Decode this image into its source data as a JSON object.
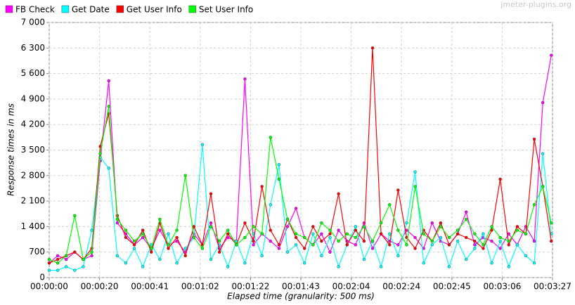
{
  "chart_data": {
    "type": "line",
    "watermark": "jmeter-plugins.org",
    "x_label": "Elapsed time (granularity: 500 ms)",
    "y_label": "Response times in ms",
    "grid": true,
    "legend": "top-left",
    "xlim": [
      0,
      207
    ],
    "xticks": [
      {
        "value": 0,
        "label": "00:00:00"
      },
      {
        "value": 20.7,
        "label": "00:00:20"
      },
      {
        "value": 41.4,
        "label": "00:00:41"
      },
      {
        "value": 62.1,
        "label": "00:01:02"
      },
      {
        "value": 82.8,
        "label": "00:01:22"
      },
      {
        "value": 103.5,
        "label": "00:01:43"
      },
      {
        "value": 124.2,
        "label": "00:02:04"
      },
      {
        "value": 144.9,
        "label": "00:02:24"
      },
      {
        "value": 165.6,
        "label": "00:02:45"
      },
      {
        "value": 186.3,
        "label": "00:03:06"
      },
      {
        "value": 207,
        "label": "00:03:27"
      }
    ],
    "ylim": [
      0,
      7000
    ],
    "yticks": [
      0,
      700,
      {
        "value": 1400,
        "label": "1 400"
      },
      {
        "value": 2100,
        "label": "2 100"
      },
      {
        "value": 2800,
        "label": "2 800"
      },
      {
        "value": 3500,
        "label": "3 500"
      },
      {
        "value": 4200,
        "label": "4 200"
      },
      {
        "value": 4900,
        "label": "4 900"
      },
      {
        "value": 5600,
        "label": "5 600"
      },
      {
        "value": 6300,
        "label": "6 300"
      },
      {
        "value": 7000,
        "label": "7 000"
      }
    ],
    "x": [
      0,
      3.5,
      7,
      10.5,
      14,
      17.5,
      21,
      24.5,
      28,
      31.5,
      35,
      38.5,
      42,
      45.5,
      49,
      52.5,
      56,
      59.5,
      63,
      66.5,
      70,
      73.5,
      77,
      80.5,
      84,
      87.5,
      91,
      94.5,
      98,
      101.5,
      105,
      108.5,
      112,
      115.5,
      119,
      122.5,
      126,
      129.5,
      133,
      136.5,
      140,
      143.5,
      147,
      150.5,
      154,
      157.5,
      161,
      164.5,
      168,
      171.5,
      175,
      178.5,
      182,
      185.5,
      189,
      192.5,
      196,
      199.5,
      203,
      206.5
    ],
    "series": [
      {
        "name": "FB Check",
        "color": "#ff00ff",
        "values": [
          400,
          600,
          500,
          700,
          500,
          600,
          3200,
          5400,
          1500,
          1200,
          900,
          1100,
          800,
          1300,
          900,
          1000,
          700,
          1200,
          900,
          1500,
          800,
          1100,
          1000,
          5450,
          900,
          1200,
          1000,
          800,
          1400,
          1900,
          1100,
          900,
          1200,
          700,
          1300,
          1000,
          900,
          1500,
          800,
          1200,
          1000,
          900,
          1300,
          1100,
          800,
          1500,
          1000,
          900,
          1200,
          1800,
          900,
          1100,
          1000,
          800,
          1200,
          900,
          1400,
          1000,
          4800,
          6100
        ]
      },
      {
        "name": "Get Date",
        "color": "#00ffff",
        "values": [
          200,
          200,
          300,
          200,
          300,
          1300,
          3300,
          3000,
          600,
          400,
          800,
          300,
          900,
          500,
          1200,
          400,
          800,
          1100,
          3650,
          500,
          900,
          300,
          1000,
          400,
          1200,
          600,
          2000,
          3100,
          700,
          900,
          400,
          1200,
          600,
          1100,
          300,
          900,
          1400,
          500,
          1000,
          300,
          1200,
          600,
          1500,
          2900,
          400,
          900,
          1100,
          300,
          1000,
          500,
          800,
          1200,
          400,
          1000,
          300,
          900,
          600,
          400,
          3400,
          1200
        ]
      },
      {
        "name": "Get User Info",
        "color": "#ff0000",
        "values": [
          400,
          500,
          600,
          700,
          500,
          800,
          3600,
          4500,
          1700,
          1100,
          900,
          1300,
          700,
          1500,
          800,
          1100,
          600,
          1400,
          900,
          2300,
          700,
          1200,
          900,
          1500,
          1000,
          2500,
          1300,
          900,
          1600,
          1100,
          800,
          1400,
          1000,
          1200,
          2300,
          900,
          1300,
          1000,
          6300,
          1200,
          900,
          2400,
          1100,
          800,
          1300,
          1000,
          1500,
          900,
          1200,
          1100,
          1000,
          800,
          1300,
          2700,
          900,
          1400,
          1200,
          3800,
          2500,
          1000
        ]
      },
      {
        "name": "Set User Info",
        "color": "#00ff00",
        "values": [
          500,
          400,
          600,
          1700,
          500,
          700,
          3400,
          4700,
          1600,
          1300,
          1000,
          1200,
          800,
          1600,
          900,
          1300,
          2800,
          1100,
          800,
          1400,
          1000,
          1300,
          900,
          1100,
          1400,
          1200,
          3850,
          2700,
          1600,
          1200,
          1100,
          900,
          1500,
          1300,
          1000,
          1200,
          1100,
          1400,
          1000,
          1500,
          2000,
          1300,
          900,
          2500,
          1200,
          1000,
          1400,
          1100,
          1300,
          1600,
          1200,
          900,
          1400,
          1100,
          1000,
          1300,
          1200,
          2000,
          2500,
          1500
        ]
      }
    ]
  }
}
